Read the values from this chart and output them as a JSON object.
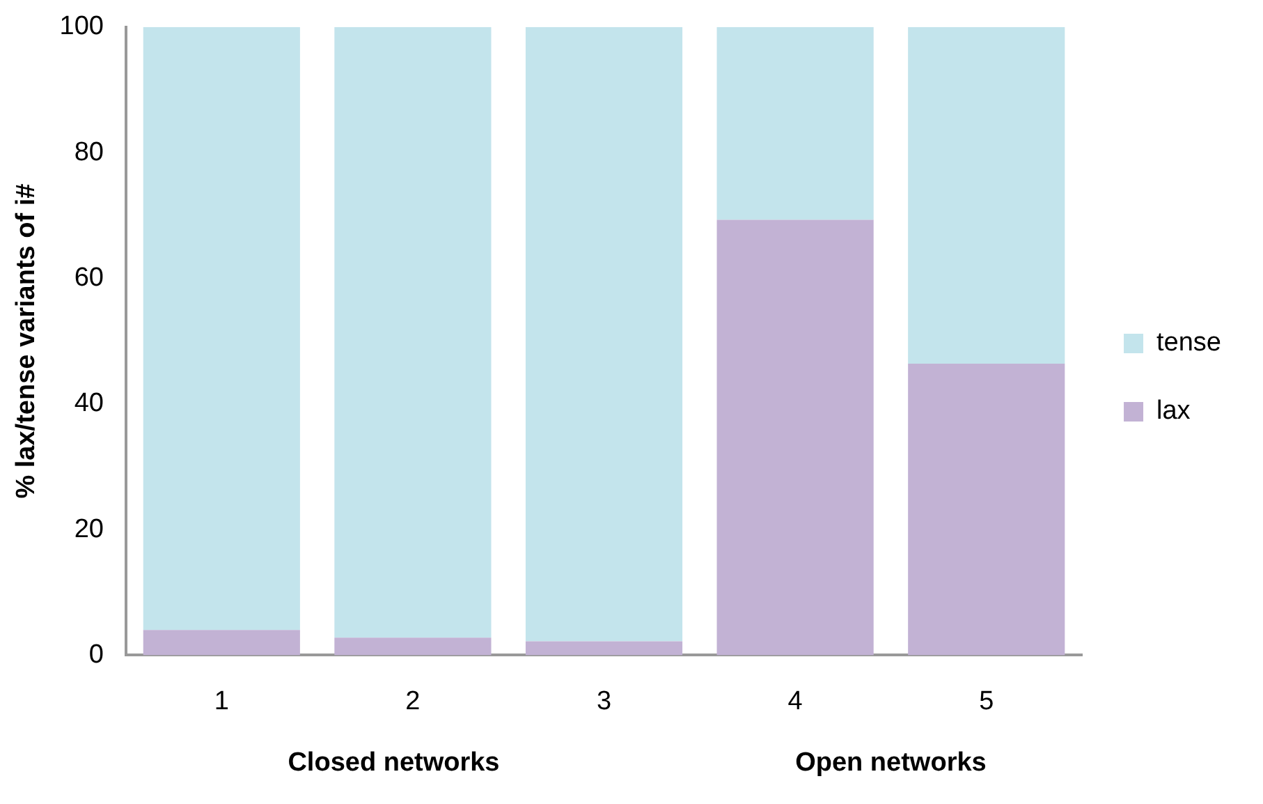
{
  "chart_data": {
    "type": "bar",
    "stacked": true,
    "ylabel": "% lax/tense variants of i#",
    "categories": [
      "1",
      "2",
      "3",
      "4",
      "5"
    ],
    "series": [
      {
        "name": "lax",
        "color": "#c2b2d4",
        "values": [
          4.0,
          2.8,
          2.2,
          69.3,
          46.4
        ]
      },
      {
        "name": "tense",
        "color": "#c3e4ec",
        "values": [
          96.0,
          97.2,
          97.8,
          30.7,
          53.6
        ]
      }
    ],
    "ylim": [
      0,
      100
    ],
    "yticks": [
      0,
      20,
      40,
      60,
      80,
      100
    ],
    "grid": false,
    "legend": "right",
    "annotations": [
      "Closed networks",
      "Open networks"
    ]
  }
}
